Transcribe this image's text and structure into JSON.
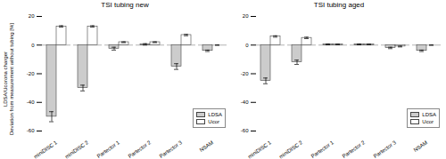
{
  "chart_data": [
    {
      "type": "bar",
      "title": "TSI tubing new",
      "ylabel": "LDSA/Ucorona charger\nDeviation from measurement without tubing [%]",
      "categories": [
        "miniDISC 1",
        "miniDISC 2",
        "Partector 1",
        "Partector 2",
        "Partector 3",
        "NSAM"
      ],
      "series": [
        {
          "name": "LDSA",
          "color": "#cccccc",
          "values": [
            -50,
            -30,
            -2.5,
            0.5,
            -15,
            -4
          ],
          "errors": [
            3.5,
            2.0,
            1.0,
            0.5,
            2.0,
            0.5
          ]
        },
        {
          "name": "Ucor",
          "color": "#ffffff",
          "values": [
            13,
            13,
            2,
            2,
            7,
            0
          ],
          "errors": [
            0.5,
            0.5,
            0.3,
            0.3,
            0.5,
            0.2
          ]
        }
      ],
      "ylim": [
        -60,
        20
      ],
      "yticks": [
        -60,
        -40,
        -20,
        0,
        20
      ],
      "legend": "lower right"
    },
    {
      "type": "bar",
      "title": "TSI tubing aged",
      "categories": [
        "miniDISC 1",
        "miniDISC 2",
        "Partector 1",
        "Partector 2",
        "Partector 3",
        "NSAM"
      ],
      "series": [
        {
          "name": "LDSA",
          "color": "#cccccc",
          "values": [
            -25,
            -12,
            0.5,
            0.5,
            -2,
            -4
          ],
          "errors": [
            2.0,
            1.5,
            0.3,
            0.3,
            0.5,
            0.5
          ]
        },
        {
          "name": "Ucor",
          "color": "#ffffff",
          "values": [
            6,
            5,
            0.5,
            0.5,
            -1,
            0
          ],
          "errors": [
            0.5,
            0.5,
            0.2,
            0.2,
            0.3,
            0.2
          ]
        }
      ],
      "ylim": [
        -60,
        20
      ],
      "yticks": [
        -60,
        -40,
        -20,
        0,
        20
      ],
      "legend": "lower right"
    }
  ]
}
